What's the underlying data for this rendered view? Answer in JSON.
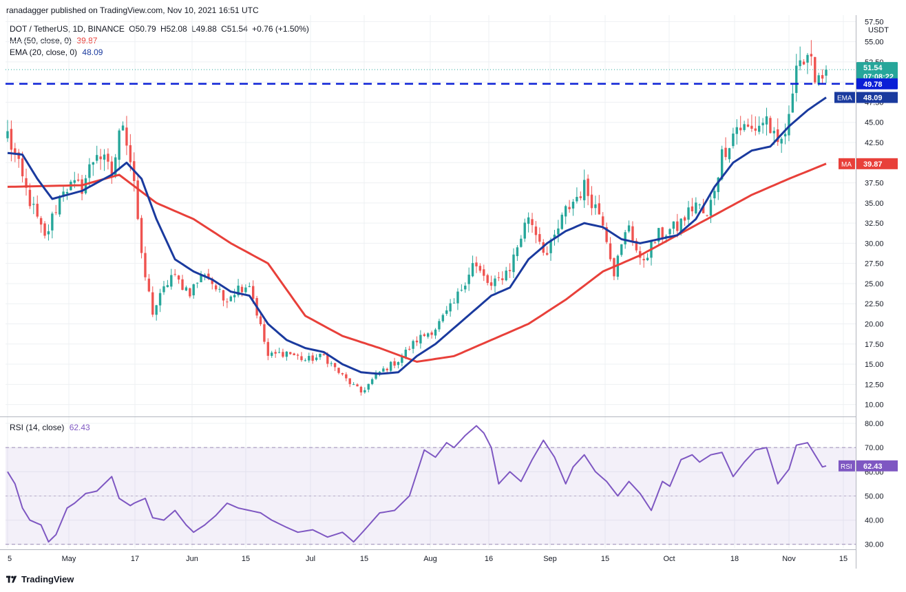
{
  "header": {
    "publisher_line": "ranadagger published on TradingView.com, Nov 10, 2021 16:51 UTC"
  },
  "legend": {
    "symbol": "DOT / TetherUS, 1D, BINANCE",
    "open": "O50.79",
    "high": "H52.08",
    "low": "L49.88",
    "close": "C51.54",
    "change": "+0.76 (+1.50%)",
    "ma_label": "MA (50, close, 0)",
    "ma_value": "39.87",
    "ema_label": "EMA (20, close, 0)",
    "ema_value": "48.09",
    "rsi_label": "RSI (14, close)",
    "rsi_value": "62.43"
  },
  "footer": {
    "brand": "TradingView"
  },
  "colors": {
    "up": "#26a69a",
    "down": "#ef5350",
    "ema": "#1a3a9e",
    "ma": "#e8403a",
    "rsi": "#7e57c2",
    "support": "#0a1fd6",
    "grid": "#eef0f3"
  },
  "chart_data": [
    {
      "type": "candlestick",
      "currency_label": "USDT",
      "x_ticks": [
        "5",
        "May",
        "17",
        "Jun",
        "15",
        "Jul",
        "15",
        "Aug",
        "16",
        "Sep",
        "15",
        "Oct",
        "18",
        "Nov",
        "15"
      ],
      "y_ticks": [
        "57.50",
        "55.00",
        "52.50",
        "50.00",
        "47.50",
        "45.00",
        "42.50",
        "40.00",
        "37.50",
        "35.00",
        "32.50",
        "30.00",
        "27.50",
        "25.00",
        "22.50",
        "20.00",
        "17.50",
        "15.00",
        "12.50",
        "10.00"
      ],
      "ylim": [
        8.6,
        58.3
      ],
      "last_price": 51.54,
      "last_price_label": "51.54",
      "countdown": "07:08:22",
      "support_level": 49.78,
      "support_label": "49.78",
      "ema_label": "EMA",
      "ema_last_label": "48.09",
      "ma_label": "MA",
      "ma_last_label": "39.87",
      "close_anchors": [
        [
          0,
          43.5
        ],
        [
          5,
          36.5
        ],
        [
          10,
          30.5
        ],
        [
          15,
          37.0
        ],
        [
          20,
          37.0
        ],
        [
          24,
          41.5
        ],
        [
          28,
          38.5
        ],
        [
          31,
          45.5
        ],
        [
          34,
          38.0
        ],
        [
          36,
          28.0
        ],
        [
          39,
          21.5
        ],
        [
          44,
          26.0
        ],
        [
          49,
          24.0
        ],
        [
          53,
          26.5
        ],
        [
          58,
          23.0
        ],
        [
          62,
          24.5
        ],
        [
          65,
          25.0
        ],
        [
          70,
          16.0
        ],
        [
          75,
          16.5
        ],
        [
          80,
          15.5
        ],
        [
          85,
          16.0
        ],
        [
          90,
          13.5
        ],
        [
          95,
          11.5
        ],
        [
          100,
          14.0
        ],
        [
          105,
          15.5
        ],
        [
          110,
          18.0
        ],
        [
          115,
          19.5
        ],
        [
          120,
          22.5
        ],
        [
          125,
          27.5
        ],
        [
          130,
          24.5
        ],
        [
          135,
          27.0
        ],
        [
          140,
          33.5
        ],
        [
          145,
          28.5
        ],
        [
          150,
          34.0
        ],
        [
          155,
          37.0
        ],
        [
          160,
          33.0
        ],
        [
          163,
          26.5
        ],
        [
          167,
          32.5
        ],
        [
          170,
          27.5
        ],
        [
          175,
          31.0
        ],
        [
          180,
          32.0
        ],
        [
          185,
          35.0
        ],
        [
          188,
          33.0
        ],
        [
          192,
          41.0
        ],
        [
          196,
          44.5
        ],
        [
          200,
          44.0
        ],
        [
          204,
          45.5
        ],
        [
          207,
          41.5
        ],
        [
          210,
          45.0
        ],
        [
          212,
          53.5
        ],
        [
          215,
          52.0
        ],
        [
          219,
          50.8
        ],
        [
          220,
          51.54
        ]
      ],
      "ma_anchors": [
        [
          0,
          37.0
        ],
        [
          20,
          37.2
        ],
        [
          30,
          38.5
        ],
        [
          40,
          35.0
        ],
        [
          50,
          33.0
        ],
        [
          60,
          30.0
        ],
        [
          70,
          27.5
        ],
        [
          80,
          21.0
        ],
        [
          90,
          18.5
        ],
        [
          100,
          17.0
        ],
        [
          110,
          15.3
        ],
        [
          120,
          16.0
        ],
        [
          130,
          18.0
        ],
        [
          140,
          20.0
        ],
        [
          150,
          23.0
        ],
        [
          160,
          26.5
        ],
        [
          170,
          28.5
        ],
        [
          180,
          31.0
        ],
        [
          190,
          33.5
        ],
        [
          200,
          36.0
        ],
        [
          210,
          38.0
        ],
        [
          220,
          39.87
        ]
      ],
      "ema_anchors": [
        [
          0,
          41.2
        ],
        [
          4,
          41.0
        ],
        [
          8,
          38.0
        ],
        [
          12,
          35.5
        ],
        [
          20,
          36.5
        ],
        [
          28,
          38.5
        ],
        [
          32,
          40.0
        ],
        [
          36,
          38.0
        ],
        [
          40,
          33.0
        ],
        [
          45,
          28.0
        ],
        [
          50,
          26.5
        ],
        [
          55,
          25.5
        ],
        [
          60,
          24.0
        ],
        [
          65,
          23.5
        ],
        [
          70,
          20.0
        ],
        [
          75,
          18.0
        ],
        [
          80,
          17.0
        ],
        [
          85,
          16.5
        ],
        [
          90,
          15.0
        ],
        [
          95,
          14.0
        ],
        [
          100,
          13.8
        ],
        [
          105,
          14.0
        ],
        [
          110,
          16.0
        ],
        [
          115,
          17.5
        ],
        [
          120,
          19.5
        ],
        [
          125,
          21.5
        ],
        [
          130,
          23.5
        ],
        [
          135,
          24.5
        ],
        [
          140,
          28.0
        ],
        [
          145,
          30.0
        ],
        [
          150,
          31.5
        ],
        [
          155,
          32.5
        ],
        [
          160,
          32.0
        ],
        [
          165,
          30.5
        ],
        [
          170,
          30.0
        ],
        [
          175,
          30.5
        ],
        [
          180,
          31.0
        ],
        [
          185,
          33.0
        ],
        [
          190,
          37.0
        ],
        [
          195,
          40.0
        ],
        [
          200,
          41.5
        ],
        [
          205,
          42.0
        ],
        [
          210,
          44.5
        ],
        [
          215,
          46.5
        ],
        [
          220,
          48.09
        ]
      ]
    },
    {
      "type": "line",
      "title": "RSI (14, close)",
      "y_ticks": [
        "80.00",
        "70.00",
        "60.00",
        "50.00",
        "40.00",
        "30.00"
      ],
      "ylim": [
        28.5,
        82.0
      ],
      "band": [
        30,
        70
      ],
      "last_value": 62.43,
      "last_label": "62.43",
      "badge_label": "RSI",
      "rsi_anchors": [
        [
          0,
          60
        ],
        [
          2,
          55
        ],
        [
          4,
          45
        ],
        [
          6,
          40
        ],
        [
          9,
          38
        ],
        [
          11,
          31
        ],
        [
          13,
          34
        ],
        [
          16,
          45
        ],
        [
          18,
          47
        ],
        [
          21,
          51
        ],
        [
          24,
          52
        ],
        [
          26,
          55
        ],
        [
          28,
          58
        ],
        [
          30,
          49
        ],
        [
          33,
          46
        ],
        [
          34,
          47
        ],
        [
          37,
          49
        ],
        [
          39,
          41
        ],
        [
          42,
          40
        ],
        [
          45,
          44
        ],
        [
          48,
          38
        ],
        [
          50,
          35
        ],
        [
          53,
          38
        ],
        [
          56,
          42
        ],
        [
          59,
          47
        ],
        [
          62,
          45
        ],
        [
          65,
          44
        ],
        [
          68,
          43
        ],
        [
          71,
          40
        ],
        [
          75,
          37
        ],
        [
          78,
          35
        ],
        [
          82,
          36
        ],
        [
          86,
          33
        ],
        [
          90,
          35
        ],
        [
          93,
          31
        ],
        [
          96,
          36
        ],
        [
          100,
          43
        ],
        [
          104,
          44
        ],
        [
          108,
          50
        ],
        [
          112,
          69
        ],
        [
          115,
          66
        ],
        [
          118,
          72
        ],
        [
          120,
          70
        ],
        [
          123,
          75
        ],
        [
          126,
          79
        ],
        [
          128,
          76
        ],
        [
          130,
          70
        ],
        [
          132,
          55
        ],
        [
          135,
          60
        ],
        [
          138,
          56
        ],
        [
          141,
          65
        ],
        [
          144,
          73
        ],
        [
          147,
          66
        ],
        [
          150,
          55
        ],
        [
          152,
          62
        ],
        [
          155,
          67
        ],
        [
          158,
          60
        ],
        [
          161,
          56
        ],
        [
          164,
          50
        ],
        [
          167,
          56
        ],
        [
          170,
          51
        ],
        [
          173,
          44
        ],
        [
          176,
          56
        ],
        [
          178,
          54
        ],
        [
          181,
          65
        ],
        [
          184,
          67
        ],
        [
          186,
          64
        ],
        [
          189,
          67
        ],
        [
          192,
          68
        ],
        [
          195,
          58
        ],
        [
          198,
          64
        ],
        [
          201,
          69
        ],
        [
          204,
          70
        ],
        [
          207,
          55
        ],
        [
          210,
          61
        ],
        [
          212,
          71
        ],
        [
          215,
          72
        ],
        [
          217,
          67
        ],
        [
          219,
          62
        ],
        [
          220,
          62.43
        ]
      ]
    }
  ]
}
